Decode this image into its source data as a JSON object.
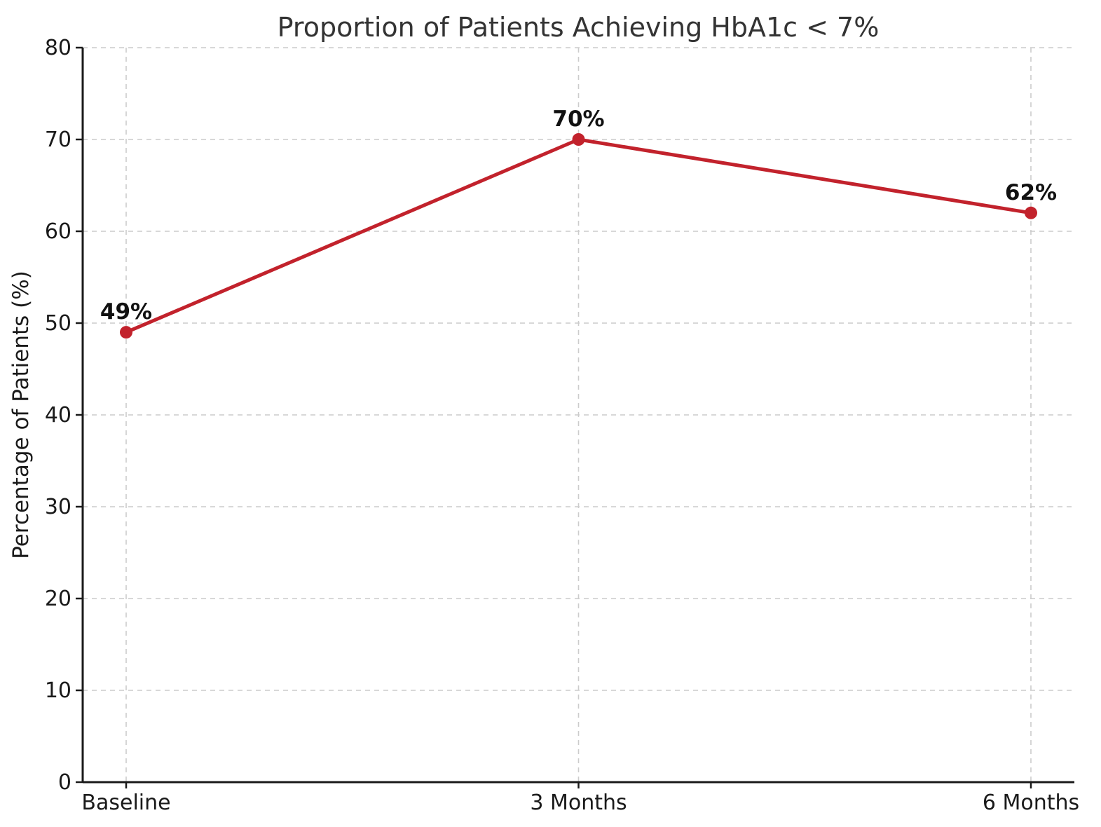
{
  "chart_data": {
    "type": "line",
    "title": "Proportion of Patients Achieving HbA1c < 7%",
    "xlabel": "",
    "ylabel": "Percentage of Patients (%)",
    "categories": [
      "Baseline",
      "3 Months",
      "6 Months"
    ],
    "values": [
      49,
      70,
      62
    ],
    "point_labels": [
      "49%",
      "70%",
      "62%"
    ],
    "ylim": [
      0,
      80
    ],
    "yticks": [
      0,
      10,
      20,
      30,
      40,
      50,
      60,
      70,
      80
    ],
    "grid": true,
    "legend": "none",
    "colors": {
      "line": "#c2222c",
      "marker": "#c2222c",
      "grid": "#cccccc",
      "axis": "#1a1a1a",
      "tick_label": "#1a1a1a",
      "title": "#333333",
      "point_label": "#111111",
      "background": "#ffffff"
    }
  }
}
